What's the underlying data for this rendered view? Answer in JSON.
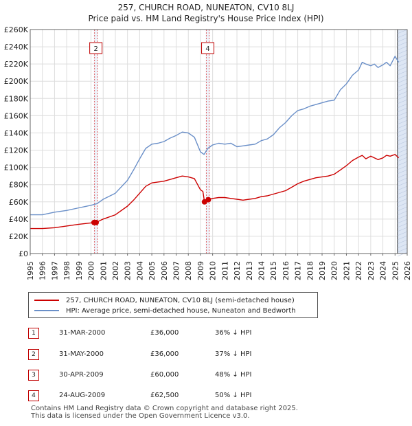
{
  "title": "257, CHURCH ROAD, NUNEATON, CV10 8LJ",
  "subtitle": "Price paid vs. HM Land Registry's House Price Index (HPI)",
  "colors": {
    "price_line": "#cc0000",
    "hpi_line": "#6a8fc8",
    "marker_line": "#e06060",
    "shade": "#dde6f4",
    "grid": "#dddddd"
  },
  "legend": {
    "price_label": "257, CHURCH ROAD, NUNEATON, CV10 8LJ (semi-detached house)",
    "hpi_label": "HPI: Average price, semi-detached house, Nuneaton and Bedworth"
  },
  "transactions": [
    {
      "num": "1",
      "date": "31-MAR-2000",
      "price": "£36,000",
      "hpi_diff": "36% ↓ HPI"
    },
    {
      "num": "2",
      "date": "31-MAY-2000",
      "price": "£36,000",
      "hpi_diff": "37% ↓ HPI"
    },
    {
      "num": "3",
      "date": "30-APR-2009",
      "price": "£60,000",
      "hpi_diff": "48% ↓ HPI"
    },
    {
      "num": "4",
      "date": "24-AUG-2009",
      "price": "£62,500",
      "hpi_diff": "50% ↓ HPI"
    }
  ],
  "footer": {
    "line1": "Contains HM Land Registry data © Crown copyright and database right 2025.",
    "line2": "This data is licensed under the Open Government Licence v3.0."
  },
  "chart_data": {
    "type": "line",
    "title": "257, CHURCH ROAD, NUNEATON, CV10 8LJ",
    "subtitle": "Price paid vs. HM Land Registry's House Price Index (HPI)",
    "xlabel": "",
    "ylabel": "",
    "xlim": [
      1995,
      2026
    ],
    "ylim": [
      0,
      260000
    ],
    "grid": true,
    "y_ticks": [
      0,
      20000,
      40000,
      60000,
      80000,
      100000,
      120000,
      140000,
      160000,
      180000,
      200000,
      220000,
      240000,
      260000
    ],
    "y_tick_labels": [
      "£0",
      "£20K",
      "£40K",
      "£60K",
      "£80K",
      "£100K",
      "£120K",
      "£140K",
      "£160K",
      "£180K",
      "£200K",
      "£220K",
      "£240K",
      "£260K"
    ],
    "x_ticks": [
      1995,
      1996,
      1997,
      1998,
      1999,
      2000,
      2001,
      2002,
      2003,
      2004,
      2005,
      2006,
      2007,
      2008,
      2009,
      2010,
      2011,
      2012,
      2013,
      2014,
      2015,
      2016,
      2017,
      2018,
      2019,
      2020,
      2021,
      2022,
      2023,
      2024,
      2025,
      2026
    ],
    "x_tick_labels": [
      "1995",
      "1996",
      "1997",
      "1998",
      "1999",
      "2000",
      "2001",
      "2002",
      "2003",
      "2004",
      "2005",
      "2006",
      "2007",
      "2008",
      "2009",
      "2010",
      "2011",
      "2012",
      "2013",
      "2014",
      "2015",
      "2016",
      "2017",
      "2018",
      "2019",
      "2020",
      "2021",
      "2022",
      "2023",
      "2024",
      "2025",
      "2026"
    ],
    "markers": [
      {
        "label": "2",
        "x": 2000.4
      },
      {
        "label": "4",
        "x": 2009.6
      }
    ],
    "shaded_region": [
      2025.2,
      2026
    ],
    "series": [
      {
        "name": "HPI: Average price, semi-detached house, Nuneaton and Bedworth",
        "x": [
          1995,
          1996,
          1997,
          1998,
          1999,
          2000,
          2000.5,
          2001,
          2002,
          2003,
          2003.5,
          2004,
          2004.5,
          2005,
          2005.5,
          2006,
          2006.5,
          2007,
          2007.5,
          2008,
          2008.5,
          2009,
          2009.3,
          2009.6,
          2010,
          2010.5,
          2011,
          2011.5,
          2012,
          2012.5,
          2013,
          2013.5,
          2014,
          2014.5,
          2015,
          2015.5,
          2016,
          2016.5,
          2017,
          2017.5,
          2018,
          2018.5,
          2019,
          2019.5,
          2020,
          2020.5,
          2021,
          2021.5,
          2022,
          2022.3,
          2022.6,
          2023,
          2023.3,
          2023.6,
          2024,
          2024.3,
          2024.6,
          2025,
          2025.3
        ],
        "values": [
          45000,
          45000,
          48000,
          50000,
          53000,
          56000,
          58000,
          63000,
          70000,
          85000,
          97000,
          110000,
          122000,
          127000,
          128000,
          130000,
          134000,
          137000,
          141000,
          140000,
          135000,
          118000,
          115000,
          122000,
          126000,
          128000,
          127000,
          128000,
          124000,
          125000,
          126000,
          127000,
          131000,
          133000,
          138000,
          146000,
          152000,
          160000,
          166000,
          168000,
          171000,
          173000,
          175000,
          177000,
          178000,
          190000,
          197000,
          207000,
          213000,
          222000,
          220000,
          218000,
          220000,
          216000,
          219000,
          222000,
          218000,
          229000,
          222000
        ]
      },
      {
        "name": "257, CHURCH ROAD, NUNEATON, CV10 8LJ (semi-detached house)",
        "x": [
          1995,
          1996,
          1997,
          1998,
          1999,
          2000.25,
          2000.4,
          2001,
          2002,
          2003,
          2003.5,
          2004,
          2004.5,
          2005,
          2005.5,
          2006,
          2006.5,
          2007,
          2007.5,
          2008,
          2008.5,
          2009,
          2009.2,
          2009.33,
          2009.45,
          2009.6,
          2010,
          2010.5,
          2011,
          2011.5,
          2012,
          2012.5,
          2013,
          2013.5,
          2014,
          2014.5,
          2015,
          2015.5,
          2016,
          2016.5,
          2017,
          2017.5,
          2018,
          2018.5,
          2019,
          2019.5,
          2020,
          2020.5,
          2021,
          2021.5,
          2022,
          2022.3,
          2022.6,
          2023,
          2023.3,
          2023.6,
          2024,
          2024.3,
          2024.6,
          2025,
          2025.3
        ],
        "values": [
          29000,
          29000,
          30000,
          32000,
          34000,
          36000,
          36000,
          40000,
          45000,
          55000,
          62000,
          70000,
          78000,
          82000,
          83000,
          84000,
          86000,
          88000,
          90000,
          89000,
          87000,
          74000,
          72000,
          60000,
          58000,
          62500,
          64000,
          65000,
          65000,
          64000,
          63000,
          62000,
          63000,
          64000,
          66000,
          67000,
          69000,
          71000,
          73000,
          77000,
          81000,
          84000,
          86000,
          88000,
          89000,
          90000,
          92000,
          97000,
          102000,
          108000,
          112000,
          114000,
          110000,
          113000,
          111000,
          109000,
          111000,
          114000,
          113000,
          115000,
          111000
        ]
      }
    ],
    "points": [
      {
        "label": "1",
        "x": 2000.25,
        "value": 36000
      },
      {
        "label": "2",
        "x": 2000.42,
        "value": 36000
      },
      {
        "label": "3",
        "x": 2009.33,
        "value": 60000
      },
      {
        "label": "4",
        "x": 2009.65,
        "value": 62500
      }
    ]
  }
}
